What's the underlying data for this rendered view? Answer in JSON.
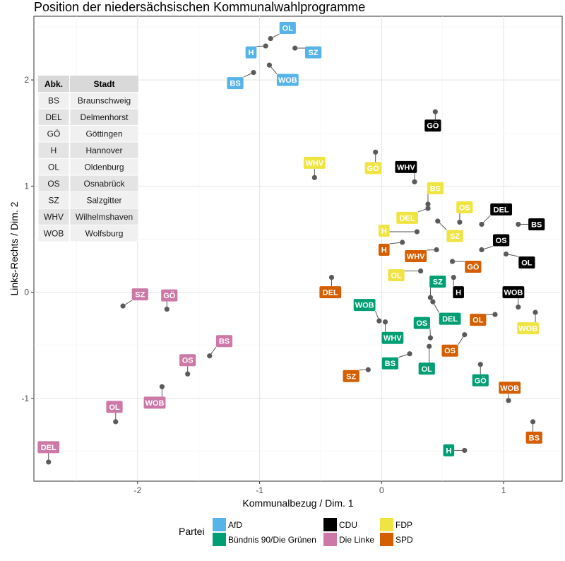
{
  "chart_data": {
    "type": "scatter",
    "title": "Position der niedersächsischen Kommunalwahlprogramme",
    "xlabel": "Kommunalbezug / Dim. 1",
    "ylabel": "Links-Rechts / Dim. 2",
    "xlim": [
      -2.85,
      1.48
    ],
    "ylim": [
      -1.78,
      2.6
    ],
    "xticks": [
      -2,
      -1,
      0,
      1
    ],
    "yticks": [
      -1,
      0,
      1,
      2
    ],
    "legend_title": "Partei",
    "parties": [
      {
        "key": "afd",
        "name": "AfD",
        "color": "#56B4E9"
      },
      {
        "key": "cdu",
        "name": "CDU",
        "color": "#000000"
      },
      {
        "key": "fdp",
        "name": "FDP",
        "color": "#F0E442"
      },
      {
        "key": "gruene",
        "name": "Bündnis 90/Die Grünen",
        "color": "#009E73"
      },
      {
        "key": "linke",
        "name": "Die Linke",
        "color": "#CC79A7"
      },
      {
        "key": "spd",
        "name": "SPD",
        "color": "#D55E00"
      }
    ],
    "points": [
      {
        "party": "afd",
        "label": "OL",
        "x": -0.91,
        "y": 2.39,
        "lx": -0.77,
        "ly": 2.49
      },
      {
        "party": "afd",
        "label": "H",
        "x": -0.95,
        "y": 2.32,
        "lx": -1.07,
        "ly": 2.26
      },
      {
        "party": "afd",
        "label": "SZ",
        "x": -0.71,
        "y": 2.3,
        "lx": -0.56,
        "ly": 2.26
      },
      {
        "party": "afd",
        "label": "BS",
        "x": -1.05,
        "y": 2.07,
        "lx": -1.2,
        "ly": 1.97
      },
      {
        "party": "afd",
        "label": "WOB",
        "x": -0.92,
        "y": 2.14,
        "lx": -0.77,
        "ly": 2.0
      },
      {
        "party": "cdu",
        "label": "GÖ",
        "x": 0.44,
        "y": 1.7,
        "lx": 0.42,
        "ly": 1.57
      },
      {
        "party": "cdu",
        "label": "WHV",
        "x": 0.27,
        "y": 1.04,
        "lx": 0.2,
        "ly": 1.18
      },
      {
        "party": "cdu",
        "label": "DEL",
        "x": 0.82,
        "y": 0.64,
        "lx": 0.98,
        "ly": 0.78
      },
      {
        "party": "cdu",
        "label": "BS",
        "x": 1.12,
        "y": 0.64,
        "lx": 1.27,
        "ly": 0.64
      },
      {
        "party": "cdu",
        "label": "OS",
        "x": 0.82,
        "y": 0.4,
        "lx": 0.98,
        "ly": 0.49
      },
      {
        "party": "cdu",
        "label": "OL",
        "x": 1.02,
        "y": 0.36,
        "lx": 1.19,
        "ly": 0.28
      },
      {
        "party": "cdu",
        "label": "H",
        "x": 0.59,
        "y": 0.14,
        "lx": 0.63,
        "ly": 0.0
      },
      {
        "party": "cdu",
        "label": "WOB",
        "x": 1.12,
        "y": -0.14,
        "lx": 1.08,
        "ly": 0.0
      },
      {
        "party": "fdp",
        "label": "WHV",
        "x": -0.55,
        "y": 1.08,
        "lx": -0.55,
        "ly": 1.22
      },
      {
        "party": "fdp",
        "label": "GÖ",
        "x": -0.05,
        "y": 1.32,
        "lx": -0.07,
        "ly": 1.17
      },
      {
        "party": "fdp",
        "label": "BS",
        "x": 0.38,
        "y": 0.83,
        "lx": 0.44,
        "ly": 0.98
      },
      {
        "party": "fdp",
        "label": "DEL",
        "x": 0.38,
        "y": 0.79,
        "lx": 0.21,
        "ly": 0.7
      },
      {
        "party": "fdp",
        "label": "OS",
        "x": 0.64,
        "y": 0.66,
        "lx": 0.68,
        "ly": 0.8
      },
      {
        "party": "fdp",
        "label": "H",
        "x": 0.29,
        "y": 0.57,
        "lx": 0.02,
        "ly": 0.58
      },
      {
        "party": "fdp",
        "label": "SZ",
        "x": 0.46,
        "y": 0.67,
        "lx": 0.6,
        "ly": 0.53
      },
      {
        "party": "fdp",
        "label": "OL",
        "x": 0.32,
        "y": 0.2,
        "lx": 0.12,
        "ly": 0.16
      },
      {
        "party": "fdp",
        "label": "WOB",
        "x": 1.26,
        "y": -0.19,
        "lx": 1.2,
        "ly": -0.34
      },
      {
        "party": "gruene",
        "label": "SZ",
        "x": 0.4,
        "y": -0.05,
        "lx": 0.46,
        "ly": 0.1
      },
      {
        "party": "gruene",
        "label": "WOB",
        "x": -0.02,
        "y": -0.27,
        "lx": -0.14,
        "ly": -0.12
      },
      {
        "party": "gruene",
        "label": "DEL",
        "x": 0.42,
        "y": -0.09,
        "lx": 0.56,
        "ly": -0.25
      },
      {
        "party": "gruene",
        "label": "OS",
        "x": 0.4,
        "y": -0.43,
        "lx": 0.33,
        "ly": -0.29
      },
      {
        "party": "gruene",
        "label": "WHV",
        "x": 0.03,
        "y": -0.28,
        "lx": 0.09,
        "ly": -0.43
      },
      {
        "party": "gruene",
        "label": "BS",
        "x": 0.23,
        "y": -0.58,
        "lx": 0.07,
        "ly": -0.67
      },
      {
        "party": "gruene",
        "label": "OL",
        "x": 0.39,
        "y": -0.51,
        "lx": 0.37,
        "ly": -0.72
      },
      {
        "party": "gruene",
        "label": "GÖ",
        "x": 0.81,
        "y": -0.68,
        "lx": 0.81,
        "ly": -0.83
      },
      {
        "party": "gruene",
        "label": "H",
        "x": 0.68,
        "y": -1.49,
        "lx": 0.55,
        "ly": -1.49
      },
      {
        "party": "linke",
        "label": "SZ",
        "x": -2.12,
        "y": -0.13,
        "lx": -1.98,
        "ly": -0.02
      },
      {
        "party": "linke",
        "label": "GÖ",
        "x": -1.76,
        "y": -0.16,
        "lx": -1.74,
        "ly": -0.03
      },
      {
        "party": "linke",
        "label": "BS",
        "x": -1.41,
        "y": -0.6,
        "lx": -1.29,
        "ly": -0.46
      },
      {
        "party": "linke",
        "label": "OS",
        "x": -1.59,
        "y": -0.77,
        "lx": -1.59,
        "ly": -0.64
      },
      {
        "party": "linke",
        "label": "WOB",
        "x": -1.8,
        "y": -0.89,
        "lx": -1.86,
        "ly": -1.04
      },
      {
        "party": "linke",
        "label": "OL",
        "x": -2.18,
        "y": -1.22,
        "lx": -2.19,
        "ly": -1.08
      },
      {
        "party": "linke",
        "label": "DEL",
        "x": -2.73,
        "y": -1.6,
        "lx": -2.73,
        "ly": -1.46
      },
      {
        "party": "spd",
        "label": "DEL",
        "x": -0.41,
        "y": 0.14,
        "lx": -0.42,
        "ly": 0.0
      },
      {
        "party": "spd",
        "label": "H",
        "x": 0.17,
        "y": 0.47,
        "lx": 0.02,
        "ly": 0.4
      },
      {
        "party": "spd",
        "label": "WHV",
        "x": 0.45,
        "y": 0.4,
        "lx": 0.28,
        "ly": 0.34
      },
      {
        "party": "spd",
        "label": "GÖ",
        "x": 0.58,
        "y": 0.29,
        "lx": 0.75,
        "ly": 0.24
      },
      {
        "party": "spd",
        "label": "OL",
        "x": 0.93,
        "y": -0.21,
        "lx": 0.79,
        "ly": -0.26
      },
      {
        "party": "spd",
        "label": "OS",
        "x": 0.68,
        "y": -0.4,
        "lx": 0.56,
        "ly": -0.55
      },
      {
        "party": "spd",
        "label": "SZ",
        "x": -0.11,
        "y": -0.73,
        "lx": -0.25,
        "ly": -0.79
      },
      {
        "party": "spd",
        "label": "WOB",
        "x": 1.04,
        "y": -1.02,
        "lx": 1.05,
        "ly": -0.9
      },
      {
        "party": "spd",
        "label": "BS",
        "x": 1.24,
        "y": -1.22,
        "lx": 1.25,
        "ly": -1.37
      }
    ],
    "city_table": {
      "headers": [
        "Abk.",
        "Stadt"
      ],
      "rows": [
        [
          "BS",
          "Braunschweig"
        ],
        [
          "DEL",
          "Delmenhorst"
        ],
        [
          "GÖ",
          "Göttingen"
        ],
        [
          "H",
          "Hannover"
        ],
        [
          "OL",
          "Oldenburg"
        ],
        [
          "OS",
          "Osnabrück"
        ],
        [
          "SZ",
          "Salzgitter"
        ],
        [
          "WHV",
          "Wilhelmshaven"
        ],
        [
          "WOB",
          "Wolfsburg"
        ]
      ]
    }
  }
}
